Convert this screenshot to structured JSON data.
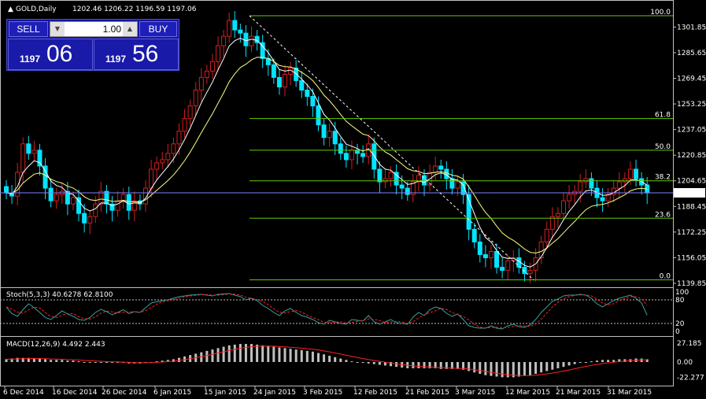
{
  "header": {
    "symbol_timeframe": "GOLD,Daily",
    "ohlc": "1202.46 1206.22 1196.59 1197.06"
  },
  "trade_panel": {
    "sell_label": "SELL",
    "buy_label": "BUY",
    "lot_value": "1.00",
    "bid_small": "1197",
    "bid_big": "06",
    "ask_small": "1197",
    "ask_big": "56"
  },
  "price_axis": {
    "ticks": [
      "1301.85",
      "1285.65",
      "1269.45",
      "1253.25",
      "1237.05",
      "1220.85",
      "1204.65",
      "1188.45",
      "1172.25",
      "1156.05",
      "1139.85"
    ],
    "current_price": "1197.06"
  },
  "fibonacci": {
    "levels": [
      "100.0",
      "61.8",
      "50.0",
      "38.2",
      "23.6",
      "0.0"
    ],
    "color": "#66cc00"
  },
  "stoch": {
    "label": "Stoch(5,3,3) 40.6278 62.8100",
    "levels": [
      "100",
      "80",
      "20",
      "0"
    ]
  },
  "macd": {
    "label": "MACD(12,26,9) 4.492 2.443",
    "levels": [
      "27.185",
      "0.00",
      "-22.277"
    ]
  },
  "time_axis": {
    "labels": [
      "6 Dec 2014",
      "16 Dec 2014",
      "26 Dec 2014",
      "6 Jan 2015",
      "15 Jan 2015",
      "24 Jan 2015",
      "3 Feb 2015",
      "12 Feb 2015",
      "21 Feb 2015",
      "3 Mar 2015",
      "12 Mar 2015",
      "21 Mar 2015",
      "31 Mar 2015"
    ]
  },
  "colors": {
    "bull": "#d12020",
    "bear": "#00e5ff",
    "grid": "#c0c0c0",
    "ma_fast": "#ffffff",
    "ma_slow": "#ffff80",
    "signal": "#ff2020",
    "hist": "#c0c0c0"
  },
  "chart_data": {
    "type": "candlestick",
    "price_range": [
      1139.85,
      1309
    ],
    "closes": [
      1197,
      1195,
      1210,
      1228,
      1222,
      1224,
      1214,
      1200,
      1192,
      1196,
      1198,
      1190,
      1194,
      1184,
      1178,
      1182,
      1190,
      1198,
      1190,
      1186,
      1192,
      1196,
      1186,
      1192,
      1190,
      1200,
      1212,
      1216,
      1218,
      1222,
      1228,
      1236,
      1244,
      1252,
      1262,
      1270,
      1274,
      1280,
      1290,
      1296,
      1306,
      1300,
      1298,
      1290,
      1296,
      1292,
      1282,
      1278,
      1270,
      1264,
      1272,
      1276,
      1268,
      1262,
      1258,
      1252,
      1240,
      1232,
      1236,
      1228,
      1222,
      1218,
      1224,
      1222,
      1220,
      1228,
      1212,
      1204,
      1206,
      1210,
      1202,
      1200,
      1196,
      1204,
      1208,
      1202,
      1210,
      1214,
      1212,
      1206,
      1200,
      1204,
      1196,
      1174,
      1166,
      1158,
      1156,
      1160,
      1150,
      1148,
      1154,
      1156,
      1150,
      1146,
      1148,
      1156,
      1166,
      1174,
      1182,
      1184,
      1192,
      1196,
      1198,
      1204,
      1206,
      1200,
      1194,
      1192,
      1196,
      1200,
      1204,
      1206,
      1212,
      1206,
      1202,
      1197
    ],
    "stoch_k": [
      62,
      45,
      38,
      55,
      70,
      60,
      48,
      35,
      30,
      40,
      52,
      44,
      38,
      30,
      28,
      35,
      48,
      56,
      50,
      42,
      48,
      55,
      45,
      50,
      48,
      60,
      72,
      75,
      78,
      80,
      84,
      88,
      90,
      92,
      93,
      94,
      92,
      90,
      94,
      95,
      96,
      92,
      88,
      80,
      84,
      78,
      66,
      58,
      48,
      40,
      52,
      58,
      48,
      40,
      36,
      30,
      22,
      18,
      28,
      24,
      20,
      18,
      30,
      28,
      26,
      40,
      24,
      18,
      24,
      30,
      22,
      20,
      18,
      36,
      48,
      40,
      55,
      62,
      58,
      46,
      38,
      44,
      30,
      14,
      10,
      8,
      8,
      14,
      8,
      6,
      14,
      18,
      12,
      10,
      16,
      30,
      48,
      62,
      76,
      82,
      90,
      92,
      92,
      94,
      92,
      84,
      70,
      62,
      70,
      78,
      84,
      88,
      92,
      84,
      72,
      41
    ],
    "macd_hist": [
      4,
      5,
      6,
      6,
      6,
      5,
      5,
      4,
      3,
      3,
      3,
      2,
      2,
      1,
      0,
      0,
      0,
      0,
      -1,
      -1,
      -1,
      -1,
      -2,
      -2,
      -2,
      -1,
      0,
      1,
      2,
      3,
      4,
      6,
      8,
      10,
      12,
      14,
      16,
      18,
      20,
      22,
      24,
      25,
      26,
      26,
      26,
      25,
      24,
      23,
      22,
      21,
      20,
      19,
      18,
      17,
      16,
      15,
      13,
      11,
      9,
      7,
      5,
      3,
      1,
      0,
      -1,
      -2,
      -3,
      -4,
      -5,
      -6,
      -7,
      -8,
      -9,
      -9,
      -9,
      -9,
      -9,
      -9,
      -10,
      -10,
      -10,
      -10,
      -11,
      -13,
      -15,
      -17,
      -19,
      -20,
      -21,
      -22,
      -22,
      -22,
      -21,
      -20,
      -19,
      -17,
      -15,
      -13,
      -11,
      -9,
      -7,
      -5,
      -3,
      -1,
      0,
      1,
      2,
      3,
      3,
      3,
      4,
      4,
      4,
      5,
      5,
      4
    ]
  }
}
